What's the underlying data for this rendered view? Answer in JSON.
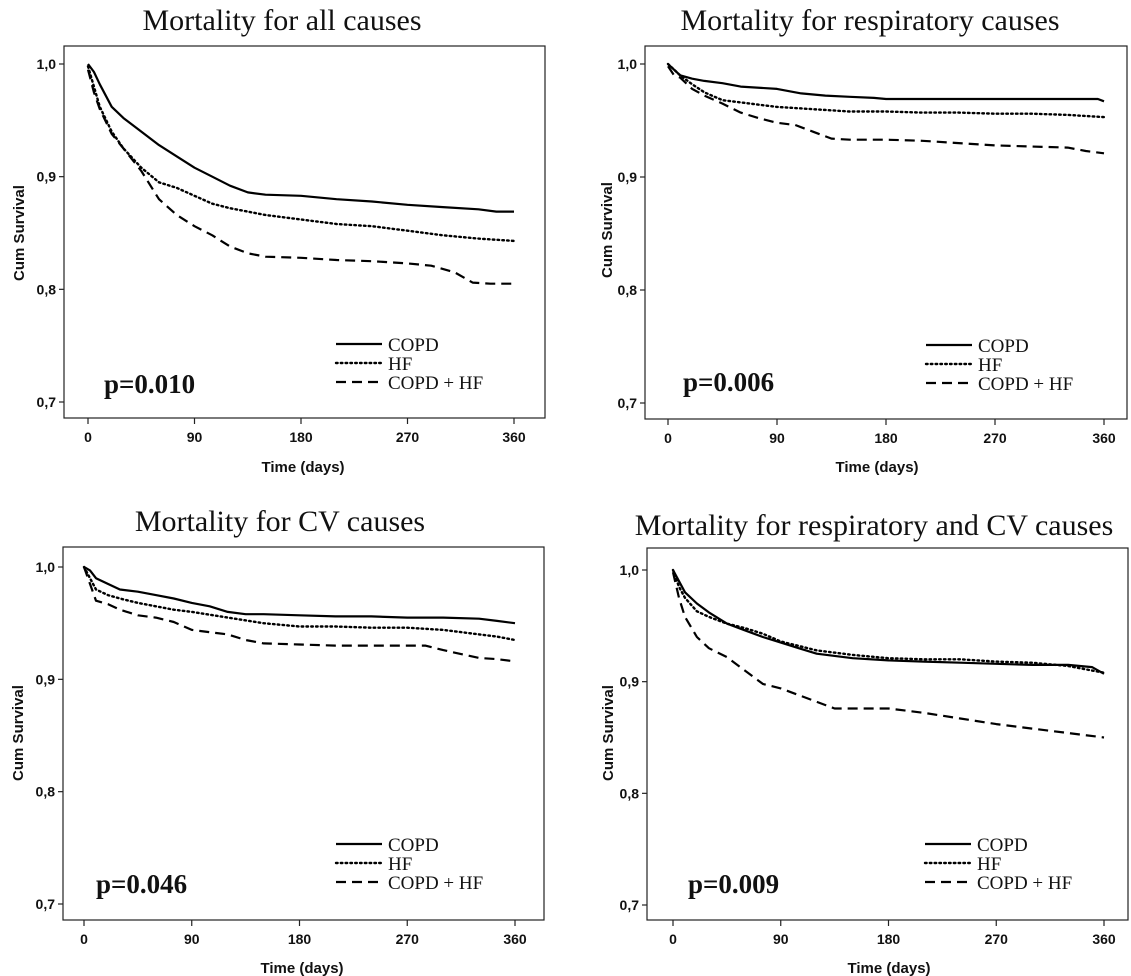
{
  "chart_data": [
    {
      "type": "line",
      "title": "Mortality for all causes",
      "xlabel": "Time (days)",
      "ylabel": "Cum Survival",
      "xlim": [
        0,
        360
      ],
      "ylim": [
        0.7,
        1.0
      ],
      "xticks": [
        {
          "value": 0,
          "label": "0"
        },
        {
          "value": 90,
          "label": "90"
        },
        {
          "value": 180,
          "label": "180"
        },
        {
          "value": 270,
          "label": "270"
        },
        {
          "value": 360,
          "label": "360"
        }
      ],
      "yticks": [
        {
          "value": 0.7,
          "label": "0,7"
        },
        {
          "value": 0.8,
          "label": "0,8"
        },
        {
          "value": 0.9,
          "label": "0,9"
        },
        {
          "value": 1.0,
          "label": "1,0"
        }
      ],
      "annotation": "p=0.010",
      "series": [
        {
          "name": "COPD",
          "style": "solid",
          "x": [
            0,
            5,
            10,
            20,
            30,
            45,
            60,
            75,
            90,
            105,
            120,
            135,
            150,
            180,
            210,
            240,
            270,
            300,
            330,
            345,
            360
          ],
          "y": [
            1.0,
            0.993,
            0.982,
            0.962,
            0.952,
            0.94,
            0.928,
            0.918,
            0.908,
            0.9,
            0.892,
            0.886,
            0.884,
            0.883,
            0.88,
            0.878,
            0.875,
            0.873,
            0.871,
            0.869,
            0.869
          ]
        },
        {
          "name": "HF",
          "style": "dotted",
          "x": [
            0,
            5,
            10,
            20,
            30,
            45,
            60,
            75,
            90,
            105,
            120,
            150,
            180,
            210,
            240,
            270,
            300,
            330,
            360
          ],
          "y": [
            0.998,
            0.98,
            0.962,
            0.94,
            0.925,
            0.908,
            0.895,
            0.89,
            0.883,
            0.876,
            0.872,
            0.866,
            0.862,
            0.858,
            0.856,
            0.852,
            0.848,
            0.845,
            0.843
          ]
        },
        {
          "name": "COPD + HF",
          "style": "dashed",
          "x": [
            0,
            5,
            10,
            20,
            30,
            45,
            60,
            75,
            90,
            105,
            120,
            135,
            150,
            180,
            210,
            240,
            270,
            290,
            310,
            325,
            340,
            360
          ],
          "y": [
            0.995,
            0.975,
            0.96,
            0.938,
            0.925,
            0.905,
            0.88,
            0.866,
            0.856,
            0.848,
            0.838,
            0.832,
            0.829,
            0.828,
            0.826,
            0.825,
            0.823,
            0.821,
            0.815,
            0.806,
            0.805,
            0.805
          ]
        }
      ],
      "legend": {
        "placement": "bottom-right",
        "entries": [
          "COPD",
          "HF",
          "COPD + HF"
        ]
      }
    },
    {
      "type": "line",
      "title": "Mortality for respiratory causes",
      "xlabel": "Time (days)",
      "ylabel": "Cum Survival",
      "xlim": [
        0,
        360
      ],
      "ylim": [
        0.7,
        1.0
      ],
      "xticks": [
        {
          "value": 0,
          "label": "0"
        },
        {
          "value": 90,
          "label": "90"
        },
        {
          "value": 180,
          "label": "180"
        },
        {
          "value": 270,
          "label": "270"
        },
        {
          "value": 360,
          "label": "360"
        }
      ],
      "yticks": [
        {
          "value": 0.7,
          "label": "0,7"
        },
        {
          "value": 0.8,
          "label": "0,8"
        },
        {
          "value": 0.9,
          "label": "0,9"
        },
        {
          "value": 1.0,
          "label": "1,0"
        }
      ],
      "annotation": "p=0.006",
      "series": [
        {
          "name": "COPD",
          "style": "solid",
          "x": [
            0,
            5,
            10,
            20,
            30,
            45,
            60,
            90,
            110,
            130,
            150,
            170,
            180,
            270,
            355,
            360
          ],
          "y": [
            1.0,
            0.995,
            0.99,
            0.987,
            0.985,
            0.983,
            0.98,
            0.978,
            0.974,
            0.972,
            0.971,
            0.97,
            0.969,
            0.969,
            0.969,
            0.967
          ]
        },
        {
          "name": "HF",
          "style": "dotted",
          "x": [
            0,
            10,
            20,
            30,
            45,
            60,
            75,
            90,
            120,
            150,
            180,
            210,
            240,
            270,
            300,
            330,
            360
          ],
          "y": [
            1.0,
            0.99,
            0.982,
            0.975,
            0.968,
            0.966,
            0.964,
            0.962,
            0.96,
            0.958,
            0.958,
            0.957,
            0.957,
            0.956,
            0.956,
            0.955,
            0.953
          ]
        },
        {
          "name": "COPD + HF",
          "style": "dashed",
          "x": [
            0,
            5,
            10,
            20,
            30,
            45,
            60,
            75,
            90,
            105,
            120,
            135,
            150,
            180,
            210,
            240,
            270,
            300,
            330,
            345,
            360
          ],
          "y": [
            0.998,
            0.99,
            0.988,
            0.978,
            0.972,
            0.965,
            0.957,
            0.952,
            0.948,
            0.946,
            0.94,
            0.934,
            0.933,
            0.933,
            0.932,
            0.93,
            0.928,
            0.927,
            0.926,
            0.923,
            0.921
          ]
        }
      ],
      "legend": {
        "placement": "bottom-right",
        "entries": [
          "COPD",
          "HF",
          "COPD + HF"
        ]
      }
    },
    {
      "type": "line",
      "title": "Mortality for CV causes",
      "xlabel": "Time (days)",
      "ylabel": "Cum Survival",
      "xlim": [
        0,
        360
      ],
      "ylim": [
        0.7,
        1.0
      ],
      "xticks": [
        {
          "value": 0,
          "label": "0"
        },
        {
          "value": 90,
          "label": "90"
        },
        {
          "value": 180,
          "label": "180"
        },
        {
          "value": 270,
          "label": "270"
        },
        {
          "value": 360,
          "label": "360"
        }
      ],
      "yticks": [
        {
          "value": 0.7,
          "label": "0,7"
        },
        {
          "value": 0.8,
          "label": "0,8"
        },
        {
          "value": 0.9,
          "label": "0,9"
        },
        {
          "value": 1.0,
          "label": "1,0"
        }
      ],
      "annotation": "p=0.046",
      "series": [
        {
          "name": "COPD",
          "style": "solid",
          "x": [
            0,
            5,
            10,
            20,
            30,
            45,
            60,
            75,
            90,
            105,
            120,
            135,
            150,
            180,
            210,
            240,
            270,
            300,
            330,
            345,
            360
          ],
          "y": [
            1.0,
            0.997,
            0.99,
            0.985,
            0.98,
            0.978,
            0.975,
            0.972,
            0.968,
            0.965,
            0.96,
            0.958,
            0.958,
            0.957,
            0.956,
            0.956,
            0.955,
            0.955,
            0.954,
            0.952,
            0.95
          ]
        },
        {
          "name": "HF",
          "style": "dotted",
          "x": [
            0,
            5,
            10,
            20,
            30,
            45,
            60,
            75,
            90,
            120,
            150,
            180,
            210,
            240,
            270,
            300,
            330,
            345,
            360
          ],
          "y": [
            1.0,
            0.99,
            0.98,
            0.975,
            0.972,
            0.968,
            0.965,
            0.962,
            0.96,
            0.955,
            0.95,
            0.947,
            0.947,
            0.946,
            0.946,
            0.944,
            0.94,
            0.938,
            0.935
          ]
        },
        {
          "name": "COPD + HF",
          "style": "dashed",
          "x": [
            0,
            5,
            10,
            20,
            30,
            45,
            60,
            75,
            90,
            105,
            120,
            135,
            150,
            180,
            210,
            240,
            270,
            285,
            300,
            330,
            345,
            360
          ],
          "y": [
            1.0,
            0.985,
            0.97,
            0.967,
            0.962,
            0.957,
            0.955,
            0.951,
            0.944,
            0.942,
            0.94,
            0.935,
            0.932,
            0.931,
            0.93,
            0.93,
            0.93,
            0.93,
            0.926,
            0.919,
            0.918,
            0.916
          ]
        }
      ],
      "legend": {
        "placement": "bottom-right",
        "entries": [
          "COPD",
          "HF",
          "COPD + HF"
        ]
      }
    },
    {
      "type": "line",
      "title": "Mortality for respiratory and CV causes",
      "xlabel": "Time (days)",
      "ylabel": "Cum Survival",
      "xlim": [
        0,
        360
      ],
      "ylim": [
        0.7,
        1.0
      ],
      "xticks": [
        {
          "value": 0,
          "label": "0"
        },
        {
          "value": 90,
          "label": "90"
        },
        {
          "value": 180,
          "label": "180"
        },
        {
          "value": 270,
          "label": "270"
        },
        {
          "value": 360,
          "label": "360"
        }
      ],
      "yticks": [
        {
          "value": 0.7,
          "label": "0,7"
        },
        {
          "value": 0.8,
          "label": "0,8"
        },
        {
          "value": 0.9,
          "label": "0,9"
        },
        {
          "value": 1.0,
          "label": "1,0"
        }
      ],
      "annotation": "p=0.009",
      "series": [
        {
          "name": "COPD",
          "style": "solid",
          "x": [
            0,
            5,
            10,
            20,
            30,
            45,
            60,
            75,
            90,
            105,
            120,
            150,
            180,
            210,
            240,
            270,
            300,
            330,
            350,
            360
          ],
          "y": [
            1.0,
            0.99,
            0.98,
            0.97,
            0.962,
            0.952,
            0.946,
            0.94,
            0.935,
            0.93,
            0.925,
            0.921,
            0.919,
            0.918,
            0.917,
            0.916,
            0.915,
            0.915,
            0.913,
            0.907
          ]
        },
        {
          "name": "HF",
          "style": "dotted",
          "x": [
            0,
            5,
            10,
            20,
            30,
            45,
            60,
            75,
            90,
            105,
            120,
            150,
            180,
            210,
            240,
            270,
            300,
            330,
            350,
            360
          ],
          "y": [
            1.0,
            0.985,
            0.975,
            0.963,
            0.958,
            0.952,
            0.948,
            0.943,
            0.936,
            0.932,
            0.928,
            0.924,
            0.921,
            0.92,
            0.92,
            0.918,
            0.917,
            0.914,
            0.91,
            0.908
          ]
        },
        {
          "name": "COPD + HF",
          "style": "dashed",
          "x": [
            0,
            5,
            10,
            20,
            30,
            45,
            60,
            75,
            90,
            105,
            120,
            135,
            150,
            180,
            210,
            240,
            270,
            300,
            330,
            360
          ],
          "y": [
            0.998,
            0.975,
            0.958,
            0.94,
            0.93,
            0.922,
            0.91,
            0.898,
            0.894,
            0.888,
            0.882,
            0.876,
            0.876,
            0.876,
            0.872,
            0.867,
            0.862,
            0.858,
            0.854,
            0.85
          ]
        }
      ],
      "legend": {
        "placement": "bottom-right",
        "entries": [
          "COPD",
          "HF",
          "COPD + HF"
        ]
      }
    }
  ]
}
